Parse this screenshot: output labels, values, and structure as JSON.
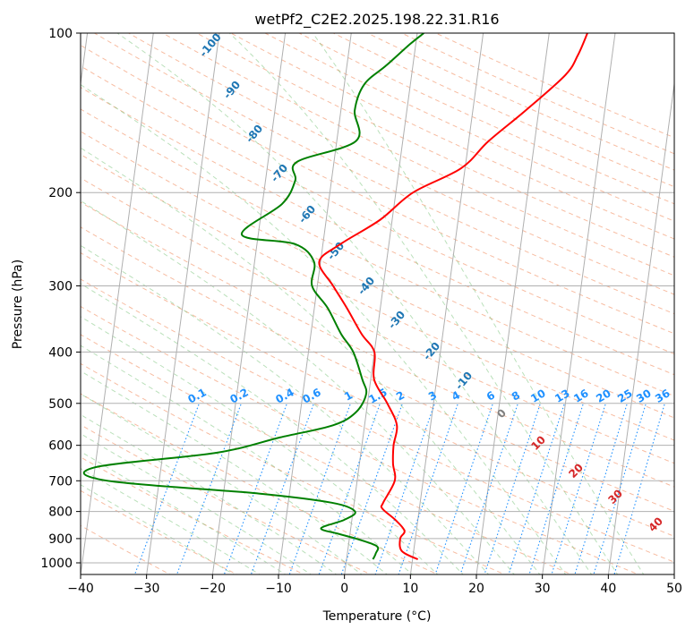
{
  "chart_data": {
    "type": "line",
    "title": "wetPf2_C2E2.2025.198.22.31.R16",
    "xlabel": "Temperature (°C)",
    "ylabel": "Pressure (hPa)",
    "xlim": [
      -40,
      50
    ],
    "ylim": [
      1050,
      100
    ],
    "y_scale": "log",
    "x_ticks": [
      -40,
      -30,
      -20,
      -10,
      0,
      10,
      20,
      30,
      40,
      50
    ],
    "x_tick_labels": [
      "−40",
      "−30",
      "−20",
      "−10",
      "0",
      "10",
      "20",
      "30",
      "40",
      "50"
    ],
    "y_ticks": [
      1000,
      900,
      800,
      700,
      600,
      500,
      400,
      300,
      200,
      100
    ],
    "y_tick_labels": [
      "1000",
      "900",
      "800",
      "700",
      "600",
      "500",
      "400",
      "300",
      "200",
      "100"
    ],
    "grid": true,
    "series": [
      {
        "color": "#ff0000",
        "points": [
          [
            985,
            10.8
          ],
          [
            950,
            8.2
          ],
          [
            900,
            7.7
          ],
          [
            870,
            8.2
          ],
          [
            830,
            6.6
          ],
          [
            790,
            4.4
          ],
          [
            770,
            4.4
          ],
          [
            700,
            5.7
          ],
          [
            650,
            5.1
          ],
          [
            600,
            4.8
          ],
          [
            550,
            4.9
          ],
          [
            500,
            3.0
          ],
          [
            450,
            0.5
          ],
          [
            400,
            0.0
          ],
          [
            370,
            -2.3
          ],
          [
            330,
            -5.1
          ],
          [
            300,
            -7.6
          ],
          [
            270,
            -10.2
          ],
          [
            250,
            -7.3
          ],
          [
            225,
            -1.8
          ],
          [
            200,
            2.6
          ],
          [
            180,
            9.4
          ],
          [
            160,
            13.0
          ],
          [
            140,
            18.0
          ],
          [
            120,
            23.3
          ],
          [
            110,
            24.8
          ],
          [
            100,
            25.8
          ]
        ]
      },
      {
        "color": "#008000",
        "points": [
          [
            985,
            4.0
          ],
          [
            960,
            4.3
          ],
          [
            930,
            4.3
          ],
          [
            900,
            1.0
          ],
          [
            880,
            -2.0
          ],
          [
            860,
            -4.5
          ],
          [
            830,
            -1.2
          ],
          [
            800,
            0.3
          ],
          [
            770,
            -3.4
          ],
          [
            740,
            -14.6
          ],
          [
            700,
            -37.8
          ],
          [
            660,
            -40.0
          ],
          [
            620,
            -22.0
          ],
          [
            580,
            -12.6
          ],
          [
            550,
            -4.8
          ],
          [
            520,
            -1.6
          ],
          [
            480,
            -0.4
          ],
          [
            450,
            -1.3
          ],
          [
            400,
            -3.2
          ],
          [
            370,
            -5.4
          ],
          [
            330,
            -8.0
          ],
          [
            300,
            -10.8
          ],
          [
            270,
            -11.0
          ],
          [
            250,
            -14.3
          ],
          [
            240,
            -22.5
          ],
          [
            210,
            -17.0
          ],
          [
            190,
            -15.5
          ],
          [
            175,
            -15.6
          ],
          [
            160,
            -7.1
          ],
          [
            140,
            -7.9
          ],
          [
            125,
            -7.0
          ],
          [
            115,
            -4.0
          ],
          [
            105,
            -0.9
          ],
          [
            100,
            1.0
          ]
        ]
      }
    ],
    "dry_adiabat_labels": [
      "-100",
      "-90",
      "-80",
      "-70",
      "-60",
      "-50",
      "-40",
      "-30",
      "-20",
      "-10"
    ],
    "mixing_ratio_labels": [
      "0.1",
      "0.2",
      "0.4",
      "0.6",
      "1",
      "1.5",
      "2",
      "3",
      "4",
      "6",
      "8",
      "10",
      "13",
      "16",
      "20",
      "25",
      "30",
      "36"
    ],
    "moist_adiabat_labels": [
      "0",
      "10",
      "20",
      "30",
      "40"
    ],
    "colors": {
      "temperature": "#ff0000",
      "dewpoint": "#008000",
      "dry_adiabat_label": "#1f77b4",
      "mixing_ratio": "#1e90ff",
      "moist_adiabat_label": "#d62728",
      "zero_label": "#808080"
    }
  }
}
